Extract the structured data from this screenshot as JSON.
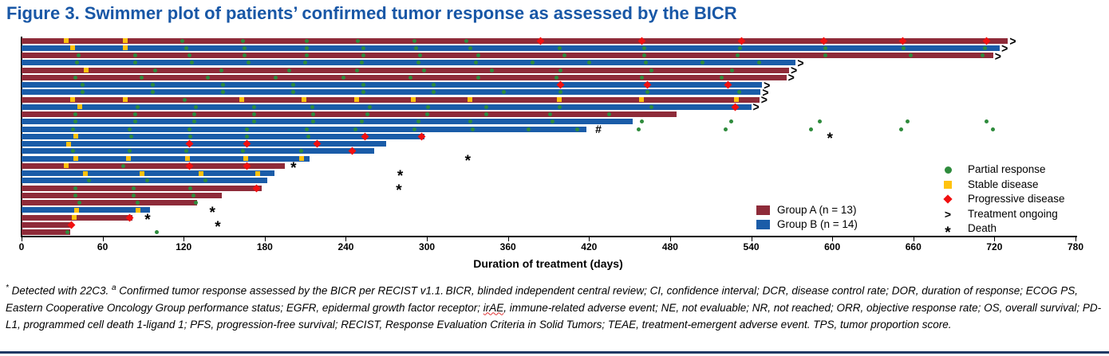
{
  "title": "Figure 3. Swimmer plot of patients’ confirmed tumor response as assessed by the BICR",
  "chart_data": {
    "type": "swimmer",
    "title": "Figure 3. Swimmer plot of patients’ confirmed tumor response as assessed by the BICR",
    "xlabel": "Duration of treatment (days)",
    "xlim": [
      0,
      780
    ],
    "xticks": [
      0,
      60,
      120,
      180,
      240,
      300,
      360,
      420,
      480,
      540,
      600,
      660,
      720,
      780
    ],
    "grid": false,
    "groups": [
      {
        "id": "A",
        "label": "Group A (n = 13)",
        "color": "#8E2B39"
      },
      {
        "id": "B",
        "label": "Group B (n = 14)",
        "color": "#1A5CA8"
      }
    ],
    "marker_legend": [
      {
        "symbol": "circle",
        "color": "#2E8B3C",
        "label": "Partial response"
      },
      {
        "symbol": "square",
        "color": "#FFC20E",
        "label": "Stable disease"
      },
      {
        "symbol": "diamond",
        "color": "#F01010",
        "label": "Progressive disease"
      },
      {
        "symbol": ">",
        "color": "#000000",
        "label": "Treatment ongoing"
      },
      {
        "symbol": "*",
        "color": "#000000",
        "label": "Death"
      }
    ],
    "marker_types": {
      "pr": "Partial response",
      "sd": "Stable disease",
      "pd": "Progressive disease"
    },
    "patients": [
      {
        "g": "A",
        "end": 730,
        "ongoing": true,
        "m": [
          [
            "sd",
            33
          ],
          [
            "sd",
            77
          ],
          [
            "pr",
            119
          ],
          [
            "pr",
            164
          ],
          [
            "pr",
            211
          ],
          [
            "pr",
            249
          ],
          [
            "pr",
            291
          ],
          [
            "pr",
            329
          ],
          [
            "pd",
            384
          ],
          [
            "pd",
            459
          ],
          [
            "pd",
            533
          ],
          [
            "pd",
            594
          ],
          [
            "pd",
            652
          ],
          [
            "pd",
            714
          ]
        ]
      },
      {
        "g": "B",
        "end": 724,
        "ongoing": true,
        "m": [
          [
            "sd",
            38
          ],
          [
            "sd",
            77
          ],
          [
            "pr",
            122
          ],
          [
            "pr",
            165
          ],
          [
            "pr",
            211
          ],
          [
            "pr",
            253
          ],
          [
            "pr",
            292
          ],
          [
            "pr",
            332
          ],
          [
            "pr",
            398
          ],
          [
            "pr",
            461
          ],
          [
            "pr",
            532
          ],
          [
            "pr",
            595
          ],
          [
            "pr",
            653
          ],
          [
            "pr",
            713
          ]
        ]
      },
      {
        "g": "A",
        "end": 719,
        "ongoing": true,
        "m": [
          [
            "pr",
            42
          ],
          [
            "pr",
            84
          ],
          [
            "pr",
            124
          ],
          [
            "pr",
            165
          ],
          [
            "pr",
            211
          ],
          [
            "pr",
            253
          ],
          [
            "pr",
            295
          ],
          [
            "pr",
            338
          ],
          [
            "pr",
            402
          ],
          [
            "pr",
            461
          ],
          [
            "pr",
            530
          ],
          [
            "pr",
            595
          ],
          [
            "pr",
            658
          ],
          [
            "pr",
            711
          ]
        ]
      },
      {
        "g": "B",
        "end": 573,
        "ongoing": true,
        "m": [
          [
            "pr",
            41
          ],
          [
            "pr",
            84
          ],
          [
            "pr",
            126
          ],
          [
            "pr",
            168
          ],
          [
            "pr",
            210
          ],
          [
            "pr",
            252
          ],
          [
            "pr",
            294
          ],
          [
            "pr",
            336
          ],
          [
            "pr",
            378
          ],
          [
            "pr",
            420
          ],
          [
            "pr",
            462
          ],
          [
            "pr",
            504
          ],
          [
            "pr",
            546
          ]
        ]
      },
      {
        "g": "A",
        "end": 568,
        "ongoing": true,
        "m": [
          [
            "sd",
            48
          ],
          [
            "pr",
            99
          ],
          [
            "pr",
            148
          ],
          [
            "pr",
            198
          ],
          [
            "pr",
            248
          ],
          [
            "pr",
            298
          ],
          [
            "pr",
            348
          ],
          [
            "pr",
            399
          ],
          [
            "pr",
            466
          ],
          [
            "pr",
            526
          ]
        ]
      },
      {
        "g": "A",
        "end": 566,
        "ongoing": true,
        "m": [
          [
            "pr",
            40
          ],
          [
            "pr",
            89
          ],
          [
            "pr",
            138
          ],
          [
            "pr",
            188
          ],
          [
            "pr",
            238
          ],
          [
            "pr",
            288
          ],
          [
            "pr",
            338
          ],
          [
            "pr",
            396
          ],
          [
            "pr",
            459
          ],
          [
            "pr",
            518
          ]
        ]
      },
      {
        "g": "B",
        "end": 548,
        "ongoing": true,
        "m": [
          [
            "pr",
            45
          ],
          [
            "pr",
            97
          ],
          [
            "pr",
            149
          ],
          [
            "pr",
            201
          ],
          [
            "pr",
            253
          ],
          [
            "pr",
            305
          ],
          [
            "pd",
            399
          ],
          [
            "pd",
            463
          ],
          [
            "pd",
            523
          ]
        ]
      },
      {
        "g": "B",
        "end": 547,
        "ongoing": true,
        "m": [
          [
            "pr",
            45
          ],
          [
            "pr",
            97
          ],
          [
            "pr",
            149
          ],
          [
            "pr",
            201
          ],
          [
            "pr",
            253
          ],
          [
            "pr",
            305
          ],
          [
            "pr",
            357
          ],
          [
            "pr",
            399
          ],
          [
            "pr",
            463
          ],
          [
            "pr",
            531
          ]
        ]
      },
      {
        "g": "A",
        "end": 546,
        "ongoing": true,
        "m": [
          [
            "sd",
            38
          ],
          [
            "sd",
            77
          ],
          [
            "pr",
            121
          ],
          [
            "sd",
            163
          ],
          [
            "sd",
            209
          ],
          [
            "sd",
            248
          ],
          [
            "sd",
            290
          ],
          [
            "sd",
            332
          ],
          [
            "sd",
            398
          ],
          [
            "sd",
            459
          ],
          [
            "sd",
            529
          ]
        ]
      },
      {
        "g": "B",
        "end": 540,
        "ongoing": true,
        "m": [
          [
            "sd",
            43
          ],
          [
            "pr",
            86
          ],
          [
            "pr",
            129
          ],
          [
            "pr",
            172
          ],
          [
            "pr",
            215
          ],
          [
            "pr",
            258
          ],
          [
            "pr",
            301
          ],
          [
            "pr",
            344
          ],
          [
            "pr",
            398
          ],
          [
            "pr",
            466
          ],
          [
            "pd",
            528
          ]
        ]
      },
      {
        "g": "A",
        "end": 485,
        "ongoing": false,
        "m": [
          [
            "pr",
            40
          ],
          [
            "pr",
            84
          ],
          [
            "pr",
            128
          ],
          [
            "pr",
            172
          ],
          [
            "pr",
            216
          ],
          [
            "pr",
            256
          ],
          [
            "pr",
            300
          ],
          [
            "pr",
            344
          ],
          [
            "pr",
            391
          ],
          [
            "pr",
            435
          ]
        ]
      },
      {
        "g": "B",
        "end": 452,
        "ongoing": false,
        "m": [
          [
            "pr",
            40
          ],
          [
            "pr",
            84
          ],
          [
            "pr",
            128
          ],
          [
            "pr",
            172
          ],
          [
            "pr",
            216
          ],
          [
            "pr",
            252
          ],
          [
            "pr",
            294
          ],
          [
            "pr",
            332
          ],
          [
            "pr",
            393
          ]
        ],
        "post": [
          459,
          525,
          591,
          656,
          714
        ]
      },
      {
        "g": "B",
        "end": 418,
        "ongoing": false,
        "hash": 427,
        "m": [
          [
            "pr",
            38
          ],
          [
            "pr",
            80
          ],
          [
            "pr",
            124
          ],
          [
            "pr",
            167
          ],
          [
            "pr",
            211
          ],
          [
            "pr",
            247
          ],
          [
            "pr",
            291
          ],
          [
            "pr",
            334
          ],
          [
            "pr",
            375
          ],
          [
            "pr",
            411
          ]
        ],
        "post": [
          457,
          521,
          584,
          651,
          719
        ]
      },
      {
        "g": "B",
        "end": 298,
        "ongoing": false,
        "death": 599,
        "m": [
          [
            "sd",
            40
          ],
          [
            "pr",
            81
          ],
          [
            "pr",
            125
          ],
          [
            "pr",
            167
          ],
          [
            "pr",
            212
          ],
          [
            "pd",
            254
          ],
          [
            "pd",
            296
          ]
        ]
      },
      {
        "g": "B",
        "end": 270,
        "ongoing": false,
        "m": [
          [
            "sd",
            35
          ],
          [
            "pd",
            124
          ],
          [
            "pd",
            167
          ],
          [
            "pd",
            219
          ]
        ]
      },
      {
        "g": "B",
        "end": 261,
        "ongoing": false,
        "m": [
          [
            "pr",
            38
          ],
          [
            "pr",
            80
          ],
          [
            "pr",
            122
          ],
          [
            "pr",
            164
          ],
          [
            "pr",
            207
          ],
          [
            "pd",
            245
          ]
        ]
      },
      {
        "g": "B",
        "end": 213,
        "ongoing": false,
        "death": 331,
        "m": [
          [
            "sd",
            40
          ],
          [
            "sd",
            79
          ],
          [
            "sd",
            123
          ],
          [
            "sd",
            166
          ],
          [
            "sd",
            207
          ]
        ]
      },
      {
        "g": "A",
        "end": 195,
        "ongoing": false,
        "death": 202,
        "m": [
          [
            "sd",
            33
          ],
          [
            "pr",
            75
          ],
          [
            "pd",
            124
          ],
          [
            "pd",
            167
          ]
        ]
      },
      {
        "g": "B",
        "end": 187,
        "ongoing": false,
        "death": 281,
        "m": [
          [
            "sd",
            47
          ],
          [
            "sd",
            89
          ],
          [
            "sd",
            133
          ],
          [
            "sd",
            175
          ]
        ]
      },
      {
        "g": "B",
        "end": 182,
        "ongoing": false,
        "m": [
          [
            "pr",
            50
          ],
          [
            "pr",
            93
          ],
          [
            "pr",
            136
          ]
        ]
      },
      {
        "g": "A",
        "end": 178,
        "ongoing": false,
        "death": 280,
        "m": [
          [
            "pr",
            40
          ],
          [
            "pr",
            83
          ],
          [
            "pr",
            125
          ],
          [
            "pd",
            174
          ]
        ]
      },
      {
        "g": "A",
        "end": 148,
        "ongoing": false,
        "m": [
          [
            "pr",
            40
          ],
          [
            "pr",
            83
          ],
          [
            "pr",
            127
          ]
        ]
      },
      {
        "g": "A",
        "end": 130,
        "ongoing": false,
        "m": [
          [
            "pr",
            43
          ],
          [
            "pr",
            86
          ],
          [
            "pr",
            129
          ]
        ]
      },
      {
        "g": "B",
        "end": 95,
        "ongoing": false,
        "death": 142,
        "m": [
          [
            "sd",
            41
          ],
          [
            "sd",
            86
          ]
        ]
      },
      {
        "g": "A",
        "end": 82,
        "ongoing": false,
        "death": 94,
        "m": [
          [
            "sd",
            39
          ],
          [
            "pd",
            80
          ]
        ]
      },
      {
        "g": "A",
        "end": 38,
        "ongoing": false,
        "death": 146,
        "m": [
          [
            "pd",
            37
          ]
        ]
      },
      {
        "g": "A",
        "end": 36,
        "ongoing": false,
        "m": [
          [
            "pr",
            34
          ]
        ],
        "post": [
          100
        ]
      }
    ]
  },
  "footnote": {
    "segments": [
      {
        "text": "*",
        "sup": true
      },
      {
        "text": " Detected with 22C3. "
      },
      {
        "text": "a",
        "sup": true
      },
      {
        "text": " Confirmed tumor response assessed by the BICR per RECIST v1.1. BICR, blinded independent central review; CI, confidence interval; DCR, disease control rate; DOR, duration of response; ECOG PS, Eastern Cooperative Oncology Group performance status; EGFR, epidermal growth factor receptor; "
      },
      {
        "text": "irAE",
        "wavy": true
      },
      {
        "text": ", immune-related adverse event; NE, not evaluable; NR, not reached; ORR, objective response rate; OS, overall survival; PD-L1, programmed cell death 1-ligand 1; PFS, progression-free survival; RECIST, Response Evaluation Criteria in Solid Tumors; TEAE, treatment-emergent adverse event. TPS, tumor proportion score."
      }
    ]
  }
}
